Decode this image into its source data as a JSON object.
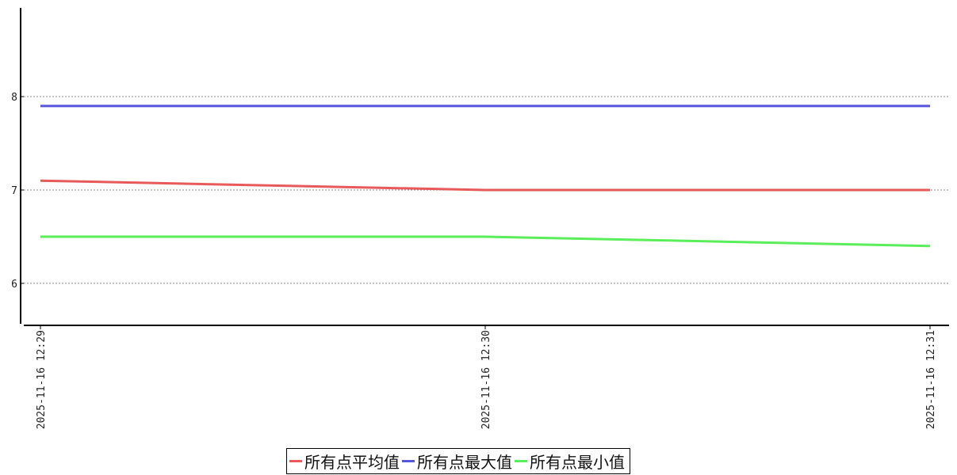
{
  "chart_data": {
    "type": "line",
    "x": [
      "2025-11-16 12:29",
      "2025-11-16 12:30",
      "2025-11-16 12:31"
    ],
    "yticks": [
      6,
      7,
      8
    ],
    "ylim": [
      5.55,
      8.95
    ],
    "grid": "horizontal dashed",
    "legend_position": "bottom",
    "series": [
      {
        "name": "所有点平均值",
        "color": "#e85a5a",
        "values": [
          7.1,
          7.0,
          7.0
        ]
      },
      {
        "name": "所有点最大值",
        "color": "#5555dd",
        "values": [
          7.9,
          7.9,
          7.9
        ]
      },
      {
        "name": "所有点最小值",
        "color": "#5aee5a",
        "values": [
          6.5,
          6.5,
          6.4
        ]
      }
    ]
  }
}
